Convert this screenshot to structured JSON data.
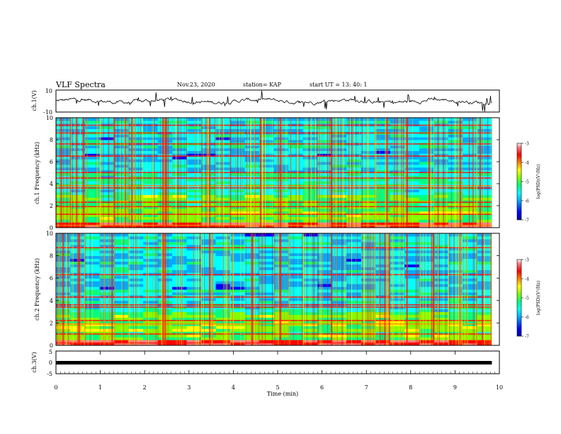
{
  "header": {
    "title": "VLF Spectra",
    "date": "Nov.23, 2020",
    "station": "station= KAP",
    "start": "start  UT =   13: 40: 1"
  },
  "chart_data": [
    {
      "type": "line",
      "name": "ch1-waveform",
      "ylabel": "ch.1(V)",
      "ylim": [
        -10,
        10
      ],
      "yticks": [
        "10",
        "-10"
      ],
      "xlim": [
        0,
        10
      ],
      "description_values": "noisy waveform around 0 V with spikes up to about 9 V and down to about -9 V",
      "baseline": 0,
      "amplitude": 4
    },
    {
      "type": "heatmap",
      "name": "ch1-spectrogram",
      "ylabel": "ch.1 Frequency (kHz)",
      "ylim": [
        0,
        10
      ],
      "yticks": [
        "0",
        "2",
        "4",
        "6",
        "8",
        "10"
      ],
      "xlim": [
        0,
        9.83
      ],
      "colorbar": {
        "label": "log(PSD)(V²/Hz)",
        "range": [
          -7,
          -3
        ],
        "ticks": [
          "-3",
          "-4",
          "-5",
          "-6",
          "-7"
        ],
        "colors": [
          "#0000a0",
          "#0000ff",
          "#00aaff",
          "#00ffff",
          "#00ff80",
          "#80ff00",
          "#ffff00",
          "#ff8000",
          "#ff0000",
          "#ff8080",
          "#ffffff"
        ]
      },
      "bands_khz": [
        0.2,
        1.2,
        1.9,
        2.3,
        3.6,
        3.8,
        4.5,
        5.0,
        6.5,
        7.6,
        8.6,
        9.3
      ],
      "intense_times_min": [
        0.1,
        0.45,
        0.6,
        1.3,
        1.7,
        2.4,
        2.45,
        3.45,
        4.6,
        5.05,
        6.2,
        7.45,
        7.9,
        8.4,
        9.1,
        9.55
      ]
    },
    {
      "type": "heatmap",
      "name": "ch2-spectrogram",
      "ylabel": "ch.2 Frequency (kHz)",
      "ylim": [
        0,
        10
      ],
      "yticks": [
        "0",
        "2",
        "4",
        "6",
        "8",
        "10"
      ],
      "xlim": [
        0,
        9.83
      ],
      "colorbar": {
        "label": "log(PSD)(V²/Hz)",
        "range": [
          -7,
          -3
        ],
        "ticks": [
          "-3",
          "-4",
          "-5",
          "-6",
          "-7"
        ],
        "colors": [
          "#0000a0",
          "#0000ff",
          "#00aaff",
          "#00ffff",
          "#00ff80",
          "#80ff00",
          "#ffff00",
          "#ff8000",
          "#ff0000",
          "#ff8080",
          "#ffffff"
        ]
      },
      "bands_khz": [
        0.2,
        1.0,
        1.9,
        2.2,
        3.4,
        3.6,
        4.3,
        6.3,
        8.7
      ],
      "intense_times_min": [
        0.15,
        0.5,
        1.25,
        2.4,
        2.45,
        3.45,
        4.4,
        5.05,
        6.2,
        7.5,
        7.9,
        8.5,
        9.6
      ]
    },
    {
      "type": "line",
      "name": "ch3-waveform",
      "ylabel": "ch.3(V)",
      "ylim": [
        -5,
        5
      ],
      "yticks": [
        "5",
        "0",
        "-5"
      ],
      "xlim": [
        0,
        9.83
      ],
      "level": 0,
      "xlabel": "Time  (min)",
      "xticks": [
        "0",
        "1",
        "2",
        "3",
        "4",
        "5",
        "6",
        "7",
        "8",
        "9",
        "10"
      ]
    }
  ]
}
